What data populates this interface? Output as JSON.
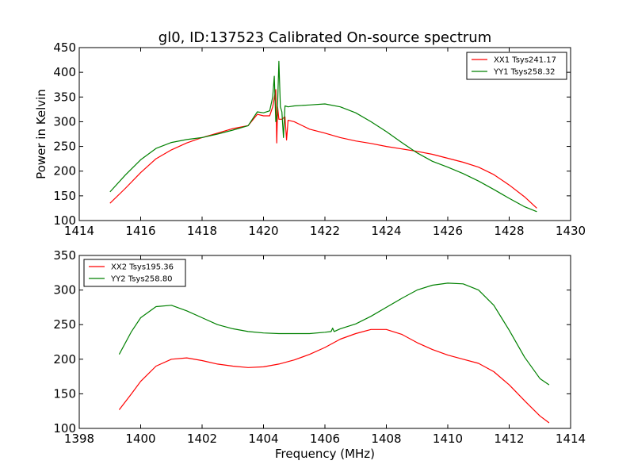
{
  "title": "gl0, ID:137523 Calibrated On-source spectrum",
  "chart_data": [
    {
      "type": "line",
      "title": "gl0, ID:137523 Calibrated On-source spectrum",
      "xlabel": "",
      "ylabel": "Power in Kelvin",
      "xlim": [
        1414,
        1430
      ],
      "ylim": [
        100,
        450
      ],
      "xticks": [
        1414,
        1416,
        1418,
        1420,
        1422,
        1424,
        1426,
        1428,
        1430
      ],
      "yticks": [
        100,
        150,
        200,
        250,
        300,
        350,
        400,
        450
      ],
      "legend_position": "top-right",
      "grid": false,
      "series": [
        {
          "name": "XX1 Tsys241.17",
          "color": "#ff0000",
          "x": [
            1415.0,
            1415.5,
            1416.0,
            1416.5,
            1417.0,
            1417.5,
            1418.0,
            1418.5,
            1419.0,
            1419.5,
            1419.8,
            1420.0,
            1420.2,
            1420.3,
            1420.4,
            1420.43,
            1420.46,
            1420.5,
            1420.6,
            1420.7,
            1420.75,
            1420.8,
            1421.0,
            1421.5,
            1422.0,
            1422.5,
            1423.0,
            1423.5,
            1424.0,
            1424.5,
            1425.0,
            1425.5,
            1426.0,
            1426.5,
            1427.0,
            1427.5,
            1428.0,
            1428.5,
            1428.9
          ],
          "y": [
            135,
            165,
            197,
            225,
            243,
            257,
            268,
            277,
            286,
            292,
            315,
            312,
            312,
            330,
            365,
            257,
            330,
            305,
            305,
            310,
            263,
            303,
            300,
            285,
            277,
            268,
            261,
            256,
            250,
            245,
            240,
            234,
            226,
            218,
            208,
            193,
            172,
            148,
            125
          ]
        },
        {
          "name": "YY1 Tsys258.32",
          "color": "#008000",
          "x": [
            1415.0,
            1415.5,
            1416.0,
            1416.5,
            1417.0,
            1417.5,
            1418.0,
            1418.5,
            1419.0,
            1419.5,
            1419.8,
            1420.0,
            1420.2,
            1420.3,
            1420.35,
            1420.4,
            1420.45,
            1420.5,
            1420.55,
            1420.6,
            1420.65,
            1420.7,
            1420.8,
            1421.0,
            1421.5,
            1422.0,
            1422.5,
            1423.0,
            1423.5,
            1424.0,
            1424.5,
            1425.0,
            1425.5,
            1426.0,
            1426.5,
            1427.0,
            1427.5,
            1428.0,
            1428.5,
            1428.9
          ],
          "y": [
            158,
            192,
            223,
            246,
            258,
            264,
            268,
            275,
            283,
            292,
            320,
            318,
            322,
            350,
            392,
            300,
            315,
            422,
            330,
            320,
            268,
            332,
            330,
            332,
            334,
            336,
            330,
            318,
            300,
            280,
            258,
            237,
            220,
            208,
            195,
            180,
            163,
            145,
            128,
            118
          ]
        }
      ]
    },
    {
      "type": "line",
      "title": "",
      "xlabel": "Frequency (MHz)",
      "ylabel": "",
      "xlim": [
        1398,
        1414
      ],
      "ylim": [
        100,
        350
      ],
      "xticks": [
        1398,
        1400,
        1402,
        1404,
        1406,
        1408,
        1410,
        1412,
        1414
      ],
      "yticks": [
        100,
        150,
        200,
        250,
        300,
        350
      ],
      "legend_position": "top-left",
      "grid": false,
      "series": [
        {
          "name": "XX2 Tsys195.36",
          "color": "#ff0000",
          "x": [
            1399.3,
            1399.7,
            1400.0,
            1400.5,
            1401.0,
            1401.5,
            1402.0,
            1402.5,
            1403.0,
            1403.5,
            1404.0,
            1404.5,
            1405.0,
            1405.5,
            1406.0,
            1406.5,
            1407.0,
            1407.5,
            1408.0,
            1408.5,
            1409.0,
            1409.5,
            1410.0,
            1410.5,
            1411.0,
            1411.5,
            1412.0,
            1412.5,
            1413.0,
            1413.3
          ],
          "y": [
            127,
            150,
            168,
            190,
            200,
            202,
            198,
            193,
            190,
            188,
            189,
            193,
            199,
            207,
            217,
            229,
            237,
            243,
            243,
            236,
            224,
            214,
            206,
            200,
            194,
            182,
            163,
            140,
            118,
            108
          ]
        },
        {
          "name": "YY2 Tsys258.80",
          "color": "#008000",
          "x": [
            1399.3,
            1399.7,
            1400.0,
            1400.5,
            1401.0,
            1401.5,
            1402.0,
            1402.5,
            1403.0,
            1403.5,
            1404.0,
            1404.5,
            1405.0,
            1405.5,
            1406.0,
            1406.2,
            1406.25,
            1406.3,
            1406.5,
            1407.0,
            1407.5,
            1408.0,
            1408.5,
            1409.0,
            1409.5,
            1410.0,
            1410.5,
            1411.0,
            1411.5,
            1412.0,
            1412.5,
            1413.0,
            1413.3
          ],
          "y": [
            207,
            240,
            260,
            276,
            278,
            270,
            260,
            250,
            244,
            240,
            238,
            237,
            237,
            237,
            239,
            240,
            245,
            240,
            244,
            251,
            262,
            275,
            288,
            300,
            307,
            310,
            309,
            300,
            278,
            242,
            203,
            172,
            163
          ]
        }
      ]
    }
  ]
}
